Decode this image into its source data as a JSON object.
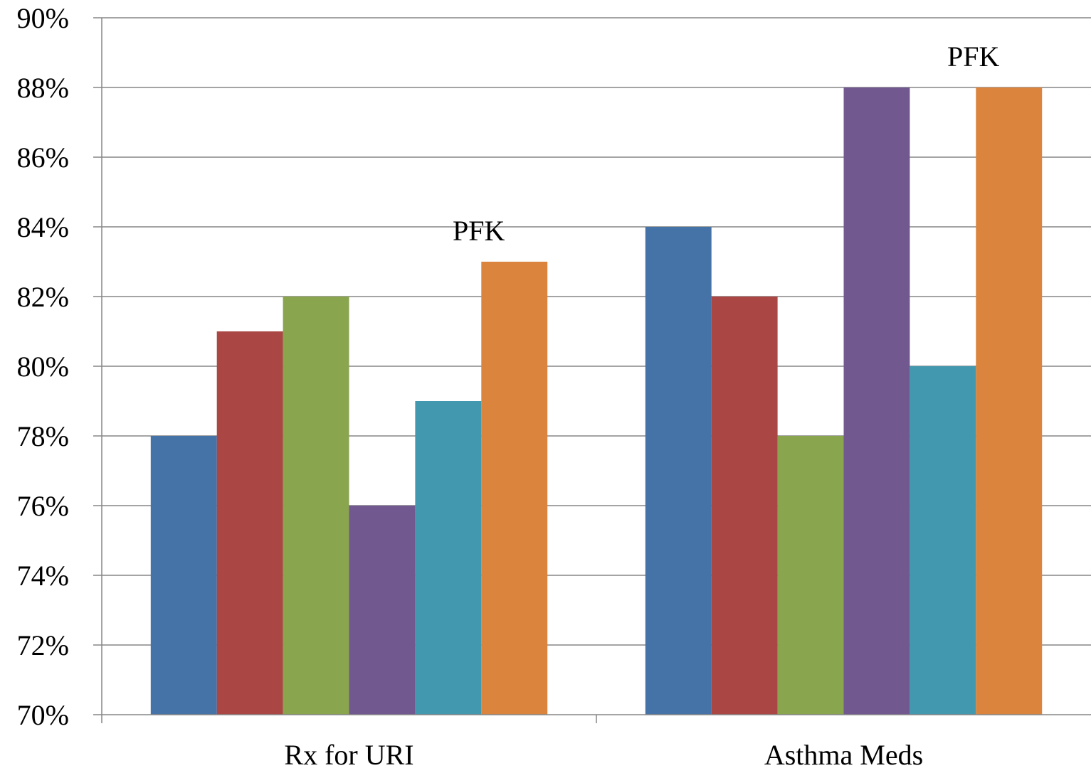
{
  "chart_data": {
    "type": "bar",
    "title": "",
    "xlabel": "",
    "ylabel": "",
    "categories": [
      "Rx for URI",
      "Asthma Meds"
    ],
    "series": [
      {
        "values": [
          78,
          84
        ],
        "color": "#4572a7"
      },
      {
        "values": [
          81,
          82
        ],
        "color": "#aa4643"
      },
      {
        "values": [
          82,
          78
        ],
        "color": "#89a54e"
      },
      {
        "values": [
          76,
          88
        ],
        "color": "#71588f"
      },
      {
        "values": [
          79,
          80
        ],
        "color": "#4198af"
      },
      {
        "values": [
          83,
          88
        ],
        "color": "#db843d"
      }
    ],
    "ylim": [
      70,
      90
    ],
    "ytick_step": 2,
    "ytick_labels": [
      "70%",
      "72%",
      "74%",
      "76%",
      "78%",
      "80%",
      "82%",
      "84%",
      "86%",
      "88%",
      "90%"
    ],
    "grid": true,
    "legend": "none",
    "annotations": [
      {
        "text": "PFK",
        "category": "Rx for URI",
        "series_index": 5
      },
      {
        "text": "PFK",
        "category": "Asthma Meds",
        "series_index": 5
      }
    ]
  }
}
